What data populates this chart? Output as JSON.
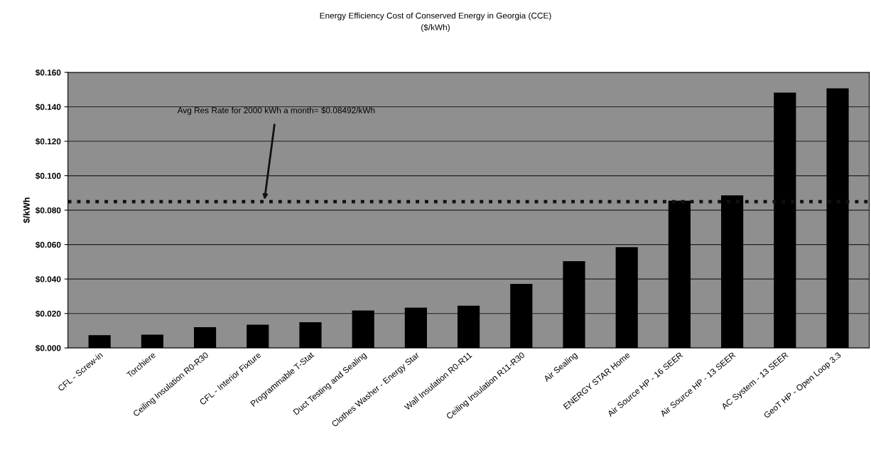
{
  "chart_data": {
    "type": "bar",
    "title": "Energy Efficiency Cost of Conserved Energy in Georgia (CCE)",
    "subtitle": "($/kWh)",
    "ylabel": "$/kWh",
    "categories": [
      "CFL - Screw-in",
      "Torchiere",
      "Ceiling Insulation R0-R30",
      "CFL - Interior Fixture",
      "Programmable T-Stat",
      "Duct Testing and Sealing",
      "Clothes Washer - Energy Star",
      "Wall Insulation R0-R11",
      "Ceiling Insulation R11-R30",
      "Air Sealing",
      "ENERGY STAR Home",
      "Air Source HP - 16 SEER",
      "Air Source HP - 13 SEER",
      "AC System - 13 SEER",
      "GeoT HP - Open Loop 3.3"
    ],
    "values": [
      0.0074,
      0.0077,
      0.012,
      0.0135,
      0.0149,
      0.0217,
      0.0234,
      0.0245,
      0.0372,
      0.0504,
      0.0585,
      0.0855,
      0.0886,
      0.1483,
      0.1507
    ],
    "color": "#000000",
    "ylim": [
      0,
      0.16
    ],
    "yticks": [
      {
        "value": 0,
        "label": "$0.000"
      },
      {
        "value": 0.02,
        "label": "$0.020"
      },
      {
        "value": 0.04,
        "label": "$0.040"
      },
      {
        "value": 0.06,
        "label": "$0.060"
      },
      {
        "value": 0.08,
        "label": "$0.080"
      },
      {
        "value": 0.1,
        "label": "$0.100"
      },
      {
        "value": 0.12,
        "label": "$0.120"
      },
      {
        "value": 0.14,
        "label": "$0.140"
      },
      {
        "value": 0.16,
        "label": "$0.160"
      }
    ],
    "grid": "y",
    "ref_lines": [
      {
        "axis": "y",
        "value": 0.08492,
        "label": "Avg Res Rate for 2000 kWh a month= $0.08492/kWh",
        "color": "#111111",
        "line_style": "dotted"
      }
    ]
  }
}
